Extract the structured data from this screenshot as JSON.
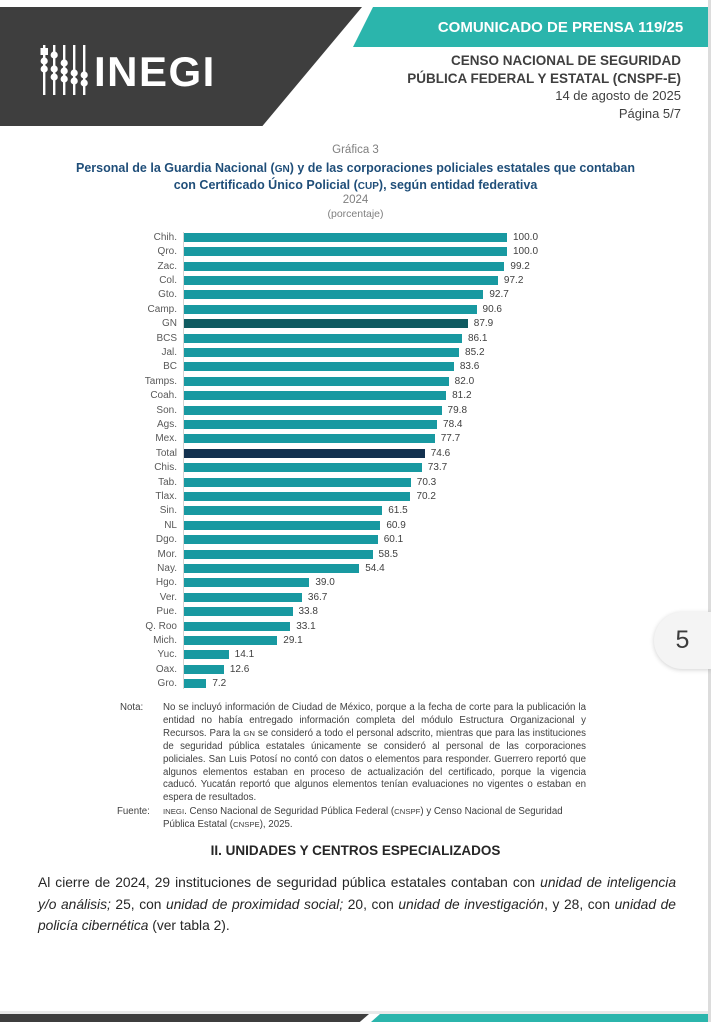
{
  "header": {
    "logo_text": "INEGI",
    "banner": "COMUNICADO DE PRENSA 119/25",
    "org_line1": "CENSO NACIONAL DE SEGURIDAD",
    "org_line2": "PÚBLICA FEDERAL Y ESTATAL (CNSPF-E)",
    "date": "14 de agosto de 2025",
    "page": "Página 5/7",
    "colors": {
      "dark": "#3E3E3E",
      "teal": "#2BB5AC"
    }
  },
  "chart_data": {
    "type": "bar",
    "orientation": "horizontal",
    "graph_label": "Gráfica 3",
    "title_lines": [
      "Personal de la Guardia Nacional (GN) y de las corporaciones policiales estatales que contaban",
      "con Certificado Único Policial (CUP), según entidad federativa"
    ],
    "subtitle": "2024",
    "unit_label": "(porcentaje)",
    "xlim": [
      0,
      100
    ],
    "grid": false,
    "legend": "none",
    "categories": [
      "Chih.",
      "Qro.",
      "Zac.",
      "Col.",
      "Gto.",
      "Camp.",
      "GN",
      "BCS",
      "Jal.",
      "BC",
      "Tamps.",
      "Coah.",
      "Son.",
      "Ags.",
      "Mex.",
      "Total",
      "Chis.",
      "Tab.",
      "Tlax.",
      "Sin.",
      "NL",
      "Dgo.",
      "Mor.",
      "Nay.",
      "Hgo.",
      "Ver.",
      "Pue.",
      "Q. Roo",
      "Mich.",
      "Yuc.",
      "Oax.",
      "Gro."
    ],
    "values": [
      100.0,
      100.0,
      99.2,
      97.2,
      92.7,
      90.6,
      87.9,
      86.1,
      85.2,
      83.6,
      82.0,
      81.2,
      79.8,
      78.4,
      77.7,
      74.6,
      73.7,
      70.3,
      70.2,
      61.5,
      60.9,
      60.1,
      58.5,
      54.4,
      39.0,
      36.7,
      33.8,
      33.1,
      29.1,
      14.1,
      12.6,
      7.2
    ],
    "colors": {
      "default": "#1899A1",
      "GN": "#0F5B61",
      "Total": "#12314F"
    }
  },
  "note": {
    "label": "Nota:",
    "text": "No se incluyó información de Ciudad de México, porque a la fecha de corte para la publicación la entidad no había entregado información completa del módulo Estructura Organizacional y Recursos. Para la GN se consideró a todo el personal adscrito, mientras que para las instituciones de seguridad pública estatales únicamente se consideró al personal de las corporaciones policiales. San Luis Potosí no contó con datos o elementos para responder. Guerrero reportó que algunos elementos estaban en proceso de actualización del certificado, porque la vigencia caducó. Yucatán reportó que algunos elementos tenían evaluaciones no vigentes o estaban en espera de resultados."
  },
  "source": {
    "label": "Fuente:",
    "text": "INEGI. Censo Nacional de Seguridad Pública Federal (CNSPF) y Censo Nacional de Seguridad Pública Estatal (CNSPE), 2025."
  },
  "section": {
    "heading": "II. UNIDADES Y CENTROS ESPECIALIZADOS",
    "paragraph_segments": [
      {
        "t": "Al cierre de 2024, 29 instituciones de seguridad pública estatales contaban con ",
        "i": false
      },
      {
        "t": "unidad de inteligencia y/o análisis;",
        "i": true
      },
      {
        "t": " 25, con ",
        "i": false
      },
      {
        "t": "unidad de proximidad social;",
        "i": true
      },
      {
        "t": " 20, con ",
        "i": false
      },
      {
        "t": "unidad de investigación",
        "i": true
      },
      {
        "t": ", y 28, con ",
        "i": false
      },
      {
        "t": "unidad de policía cibernética",
        "i": true
      },
      {
        "t": " (ver tabla 2).",
        "i": false
      }
    ]
  },
  "page_indicator": "5"
}
